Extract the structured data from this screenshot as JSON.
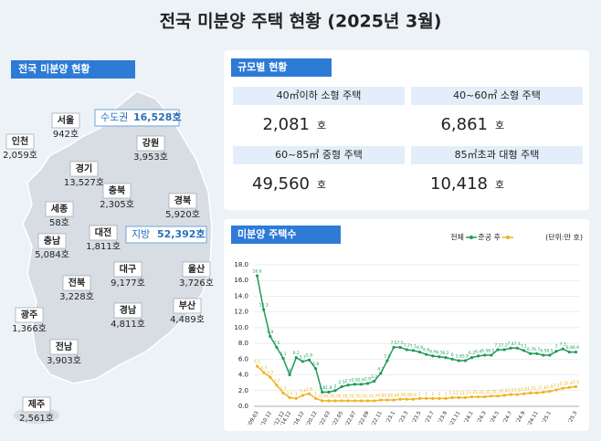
{
  "title": "전국 미분양 주택 현황  (2025년 3월)",
  "map": {
    "header": "전국 미분양 현황",
    "capital": {
      "label": "수도권",
      "value": "16,528호"
    },
    "provinces": {
      "label": "지방",
      "value": "52,392호"
    },
    "regions": [
      {
        "name": "서울",
        "value": "942호"
      },
      {
        "name": "인천",
        "value": "2,059호"
      },
      {
        "name": "경기",
        "value": "13,527호"
      },
      {
        "name": "강원",
        "value": "3,953호"
      },
      {
        "name": "충북",
        "value": "2,305호"
      },
      {
        "name": "경북",
        "value": "5,920호"
      },
      {
        "name": "세종",
        "value": "58호"
      },
      {
        "name": "충남",
        "value": "5,084호"
      },
      {
        "name": "대전",
        "value": "1,811호"
      },
      {
        "name": "대구",
        "value": "9,177호"
      },
      {
        "name": "울산",
        "value": "3,726호"
      },
      {
        "name": "전북",
        "value": "3,228호"
      },
      {
        "name": "경남",
        "value": "4,811호"
      },
      {
        "name": "부산",
        "value": "4,489호"
      },
      {
        "name": "광주",
        "value": "1,366호"
      },
      {
        "name": "전남",
        "value": "3,903호"
      },
      {
        "name": "제주",
        "value": "2,561호"
      }
    ]
  },
  "size": {
    "header": "규모별 현황",
    "cells": [
      {
        "label": "40㎡이하 소형 주택",
        "value": "2,081",
        "unit": "호"
      },
      {
        "label": "40~60㎡ 소형 주택",
        "value": "6,861",
        "unit": "호"
      },
      {
        "label": "60~85㎡ 중형 주택",
        "value": "49,560",
        "unit": "호"
      },
      {
        "label": "85㎡초과 대형 주택",
        "value": "10,418",
        "unit": "호"
      }
    ]
  },
  "chart_data": {
    "type": "line",
    "title": "미분양 주택수",
    "unit": "(단위:만 호)",
    "legend": "top-right",
    "categories": [
      "'09.03",
      null,
      "'10.12",
      null,
      "'12.12",
      "'14.12",
      null,
      "'16.12",
      null,
      "'20.12",
      null,
      "'22.03",
      null,
      "'22.05",
      null,
      "'22.07",
      null,
      "'22.09",
      null,
      "'22.11",
      null,
      "'23.1",
      null,
      "'23.3",
      null,
      "'23.5",
      null,
      "'23.7",
      null,
      "'23.9",
      null,
      "'23.11",
      null,
      "'24.1",
      null,
      "'24.3",
      null,
      "'24.5",
      null,
      "'24.7",
      null,
      "'24.9",
      null,
      "'24.11",
      null,
      "'25.1",
      null,
      null,
      null,
      "'25.3"
    ],
    "series": [
      {
        "name": "전체",
        "color": "#1f9a5b",
        "values": [
          16.6,
          12.3,
          8.9,
          7.5,
          6.1,
          4.0,
          6.2,
          5.7,
          5.9,
          4.8,
          1.8,
          1.8,
          2.0,
          2.5,
          2.7,
          2.8,
          2.8,
          2.9,
          3.2,
          4.2,
          5.8,
          7.5,
          7.5,
          7.2,
          7.1,
          6.9,
          6.6,
          6.4,
          6.3,
          6.2,
          6.0,
          5.8,
          5.8,
          6.2,
          6.4,
          6.5,
          6.5,
          7.2,
          7.2,
          7.4,
          7.4,
          7.1,
          6.7,
          6.7,
          6.5,
          6.5,
          7.0,
          7.3,
          6.9,
          6.9
        ]
      },
      {
        "name": "준공 후",
        "color": "#f0b323",
        "values": [
          5.1,
          4.3,
          3.7,
          2.7,
          1.7,
          1.1,
          1.0,
          1.4,
          1.6,
          1.0,
          0.7,
          0.7,
          0.7,
          0.7,
          0.7,
          0.7,
          0.7,
          0.7,
          0.7,
          0.8,
          0.8,
          0.8,
          0.9,
          0.9,
          0.9,
          1.0,
          1.0,
          1.0,
          1.0,
          1.0,
          1.1,
          1.1,
          1.1,
          1.2,
          1.2,
          1.2,
          1.3,
          1.3,
          1.4,
          1.5,
          1.5,
          1.6,
          1.7,
          1.7,
          1.8,
          1.9,
          2.1,
          2.3,
          2.4,
          2.5
        ]
      }
    ],
    "ylim": [
      0,
      18
    ],
    "yticks": [
      {
        "value": 0,
        "label": "0.0"
      },
      {
        "value": 2,
        "label": "2.0"
      },
      {
        "value": 4,
        "label": "4.0"
      },
      {
        "value": 6,
        "label": "6.0"
      },
      {
        "value": 8,
        "label": "8.0"
      },
      {
        "value": 10,
        "label": "10.0"
      },
      {
        "value": 12,
        "label": "12.0"
      },
      {
        "value": 14,
        "label": "14.0"
      },
      {
        "value": 16,
        "label": "16.0"
      },
      {
        "value": 18,
        "label": "18.0"
      }
    ],
    "grid": true
  }
}
